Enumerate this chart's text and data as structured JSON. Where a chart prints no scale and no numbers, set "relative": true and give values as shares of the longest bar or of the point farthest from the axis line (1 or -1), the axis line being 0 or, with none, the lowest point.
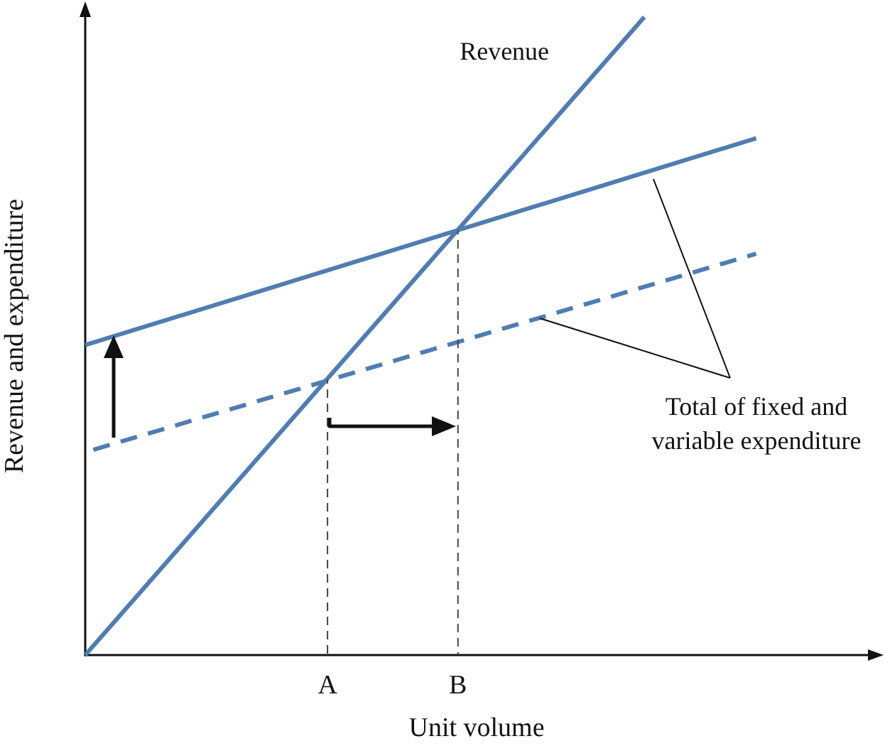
{
  "chart_data": {
    "type": "line",
    "relative": true,
    "xlabel": "Unit volume",
    "ylabel": "Revenue and expenditure",
    "categories": [
      null,
      null,
      null,
      null,
      null,
      null,
      null,
      null,
      null,
      null,
      null,
      null,
      null,
      "A",
      null,
      null,
      null,
      null,
      null,
      null,
      "B",
      null,
      null,
      null,
      null,
      null,
      null,
      null,
      null,
      null,
      null,
      null,
      null,
      null,
      null,
      null,
      null,
      null,
      null,
      null,
      null,
      null,
      null
    ],
    "series": [
      {
        "name": "Revenue",
        "color": "#4f7db3",
        "values": [
          0,
          null,
          null,
          null,
          null,
          null,
          null,
          null,
          null,
          null,
          null,
          null,
          null,
          null,
          null,
          null,
          null,
          null,
          null,
          null,
          null,
          null,
          null,
          null,
          null,
          null,
          null,
          null,
          null,
          null,
          1,
          null,
          null,
          null,
          null,
          null,
          null,
          null,
          null,
          null,
          null,
          null,
          null
        ]
      },
      {
        "color": "#4f7db3",
        "values": [
          0.486,
          null,
          null,
          null,
          null,
          null,
          null,
          null,
          null,
          null,
          null,
          null,
          null,
          null,
          null,
          null,
          null,
          null,
          null,
          null,
          null,
          null,
          null,
          null,
          null,
          null,
          null,
          null,
          null,
          null,
          null,
          null,
          null,
          null,
          null,
          null,
          0.81,
          null,
          null,
          null,
          null,
          null,
          null
        ]
      },
      {
        "color": "#4f7db3",
        "line_style": "dashed",
        "values": [
          0.318,
          null,
          null,
          null,
          null,
          null,
          null,
          null,
          null,
          null,
          null,
          null,
          null,
          null,
          null,
          null,
          null,
          null,
          null,
          null,
          null,
          null,
          null,
          null,
          null,
          null,
          null,
          null,
          null,
          null,
          null,
          null,
          null,
          null,
          null,
          null,
          0.629,
          null,
          null,
          null,
          null,
          null,
          null
        ]
      },
      {
        "color": "#444444",
        "line_style": "dashed",
        "x": [
          "A",
          "A"
        ],
        "values": [
          0,
          0.432
        ]
      },
      {
        "color": "#444444",
        "line_style": "dashed",
        "x": [
          "B",
          "B"
        ],
        "values": [
          0,
          0.666
        ]
      }
    ],
    "annotations": [
      "Total of fixed and variable expenditure"
    ],
    "grid": false,
    "legend": false,
    "marker": "none"
  }
}
